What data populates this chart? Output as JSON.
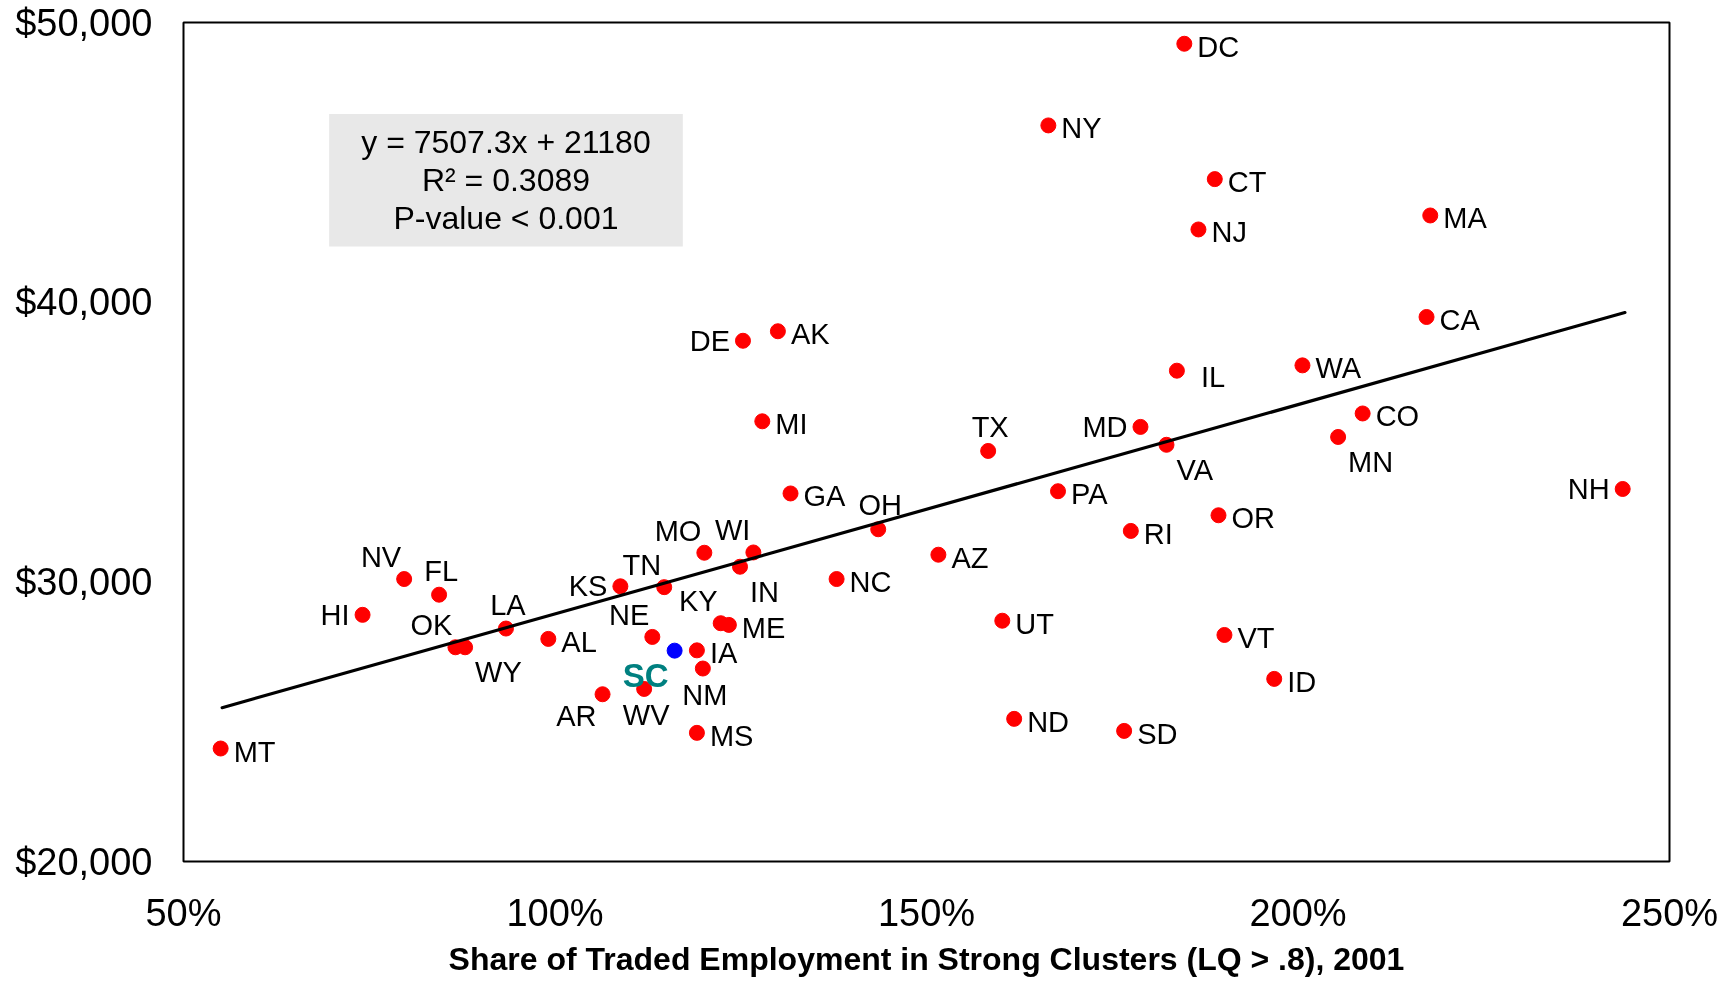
{
  "chart_data": {
    "type": "scatter",
    "xlabel": "Share of Traded Employment in Strong Clusters (LQ > .8), 2001",
    "xlim": [
      50,
      250
    ],
    "ylim": [
      20000,
      50000
    ],
    "xticks": [
      {
        "value": 50,
        "label": "50%"
      },
      {
        "value": 100,
        "label": "100%"
      },
      {
        "value": 150,
        "label": "150%"
      },
      {
        "value": 200,
        "label": "200%"
      },
      {
        "value": 250,
        "label": "250%"
      }
    ],
    "yticks": [
      {
        "value": 20000,
        "label": "$20,000"
      },
      {
        "value": 30000,
        "label": "$30,000"
      },
      {
        "value": 40000,
        "label": "$40,000"
      },
      {
        "value": 50000,
        "label": "$50,000"
      }
    ],
    "grid": false,
    "marker": "circle",
    "series": [
      {
        "color": "#ff0000",
        "x": [
          184.7,
          166.4,
          188.8,
          186.6,
          217.8,
          217.3,
          125.3,
          130.0,
          183.7,
          200.6,
          127.9,
          158.3,
          178.8,
          208.7,
          205.4,
          182.3,
          131.7,
          167.7,
          243.7,
          143.5,
          189.3,
          177.5,
          120.1,
          126.7,
          79.7,
          124.9,
          151.6,
          108.8,
          114.7,
          137.9,
          84.4,
          74.1,
          99.1,
          93.4,
          122.3,
          123.4,
          160.2,
          113.1,
          86.6,
          87.9,
          119.1,
          190.1,
          119.9,
          196.8,
          112.0,
          106.4,
          161.8,
          176.6,
          119.1,
          55.0
        ],
        "values": [
          49240,
          46320,
          44400,
          42600,
          43100,
          39470,
          38620,
          38960,
          37550,
          37740,
          35740,
          34680,
          35540,
          36020,
          35180,
          34900,
          33160,
          33240,
          33320,
          31880,
          32380,
          31820,
          31040,
          31050,
          30100,
          30540,
          30970,
          29840,
          29810,
          30100,
          29540,
          28820,
          27960,
          28330,
          28520,
          28460,
          28610,
          28030,
          27660,
          27660,
          27550,
          28100,
          26900,
          26530,
          26170,
          25980,
          25100,
          24670,
          24600,
          24040
        ]
      },
      {
        "name": "SC",
        "color": "#0000ff",
        "x": [
          116.1
        ],
        "values": [
          27540
        ]
      },
      {
        "type": "line",
        "color": "#000000",
        "line_style": "solid",
        "marker": "none",
        "x": [
          55.2,
          244.0
        ],
        "values": [
          25500,
          39630
        ]
      }
    ],
    "annotations": [
      "y = 7507.3x + 21180",
      "R² = 0.3089",
      "P-value < 0.001",
      {
        "text": "DC",
        "x": 184.7,
        "y": 49240
      },
      {
        "text": "NY",
        "x": 166.4,
        "y": 46320
      },
      {
        "text": "CT",
        "x": 188.8,
        "y": 44400
      },
      {
        "text": "NJ",
        "x": 186.6,
        "y": 42600
      },
      {
        "text": "MA",
        "x": 217.8,
        "y": 43100
      },
      {
        "text": "CA",
        "x": 217.3,
        "y": 39470
      },
      {
        "text": "DE",
        "x": 125.3,
        "y": 38620
      },
      {
        "text": "AK",
        "x": 130.0,
        "y": 38960
      },
      {
        "text": "IL",
        "x": 183.7,
        "y": 37550
      },
      {
        "text": "WA",
        "x": 200.6,
        "y": 37740
      },
      {
        "text": "MI",
        "x": 127.9,
        "y": 35740
      },
      {
        "text": "TX",
        "x": 158.3,
        "y": 34680
      },
      {
        "text": "MD",
        "x": 178.8,
        "y": 35540
      },
      {
        "text": "CO",
        "x": 208.7,
        "y": 36020
      },
      {
        "text": "MN",
        "x": 205.4,
        "y": 35180
      },
      {
        "text": "VA",
        "x": 182.3,
        "y": 34900
      },
      {
        "text": "GA",
        "x": 131.7,
        "y": 33160
      },
      {
        "text": "PA",
        "x": 167.7,
        "y": 33240
      },
      {
        "text": "NH",
        "x": 243.7,
        "y": 33320
      },
      {
        "text": "OH",
        "x": 143.5,
        "y": 31880
      },
      {
        "text": "OR",
        "x": 189.3,
        "y": 32380
      },
      {
        "text": "RI",
        "x": 177.5,
        "y": 31820
      },
      {
        "text": "MO",
        "x": 120.1,
        "y": 31040
      },
      {
        "text": "WI",
        "x": 126.7,
        "y": 31050
      },
      {
        "text": "NV",
        "x": 79.7,
        "y": 30100
      },
      {
        "text": "IN",
        "x": 124.9,
        "y": 30540
      },
      {
        "text": "AZ",
        "x": 151.6,
        "y": 30970
      },
      {
        "text": "KS",
        "x": 108.8,
        "y": 29840
      },
      {
        "text": "TN",
        "x": 114.7,
        "y": 29810
      },
      {
        "text": "NC",
        "x": 137.9,
        "y": 30100
      },
      {
        "text": "FL",
        "x": 84.4,
        "y": 29540
      },
      {
        "text": "HI",
        "x": 74.1,
        "y": 28820
      },
      {
        "text": "AL",
        "x": 99.1,
        "y": 27960
      },
      {
        "text": "LA",
        "x": 93.4,
        "y": 28330
      },
      {
        "text": "KY",
        "x": 122.3,
        "y": 28520
      },
      {
        "text": "ME",
        "x": 123.4,
        "y": 28460
      },
      {
        "text": "UT",
        "x": 160.2,
        "y": 28610
      },
      {
        "text": "NE",
        "x": 113.1,
        "y": 28030
      },
      {
        "text": "OK",
        "x": 86.6,
        "y": 27660
      },
      {
        "text": "WY",
        "x": 87.9,
        "y": 27660
      },
      {
        "text": "IA",
        "x": 119.1,
        "y": 27550
      },
      {
        "text": "VT",
        "x": 190.1,
        "y": 28100
      },
      {
        "text": "NM",
        "x": 119.9,
        "y": 26900
      },
      {
        "text": "ID",
        "x": 196.8,
        "y": 26530
      },
      {
        "text": "WV",
        "x": 112.0,
        "y": 26170
      },
      {
        "text": "AR",
        "x": 106.4,
        "y": 25980
      },
      {
        "text": "ND",
        "x": 161.8,
        "y": 25100
      },
      {
        "text": "SD",
        "x": 176.6,
        "y": 24670
      },
      {
        "text": "MS",
        "x": 119.1,
        "y": 24600
      },
      {
        "text": "MT",
        "x": 55.0,
        "y": 24040
      }
    ]
  }
}
